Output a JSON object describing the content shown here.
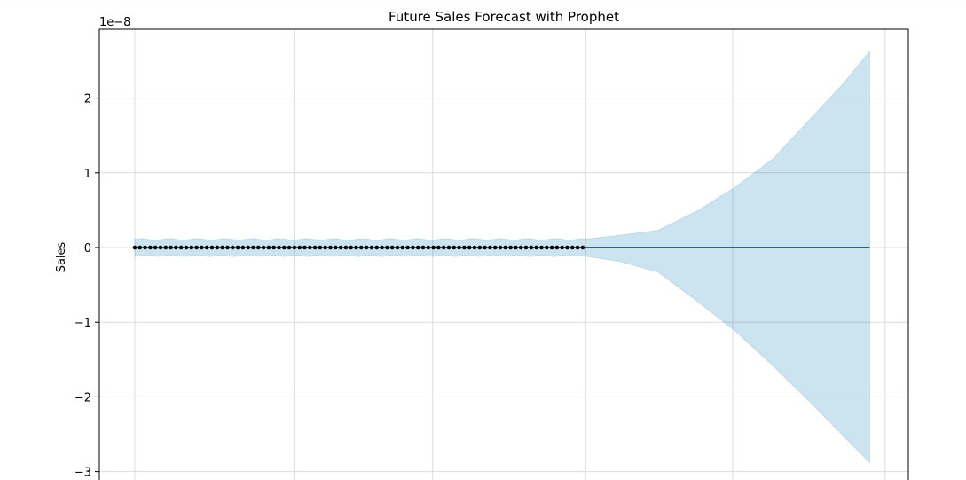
{
  "chart_data": {
    "type": "line",
    "title": "Future Sales Forecast with Prophet",
    "xlabel": "",
    "ylabel": "Sales",
    "y_offset_label": "1e−8",
    "ylim": [
      -3.0,
      2.9
    ],
    "y_ticks": [
      2,
      1,
      0,
      -1,
      -2,
      -3
    ],
    "y_tick_labels": [
      "2",
      "1",
      "0",
      "−1",
      "−2",
      "−3"
    ],
    "x_range": [
      0,
      1
    ],
    "x_grid": [
      0.0,
      0.207,
      0.387,
      0.586,
      0.777,
      0.975
    ],
    "grid": true,
    "history_end": 0.582,
    "forecast_end": 0.955,
    "actual_points": 88,
    "series": [
      {
        "values_note": "yhat",
        "value": 0
      }
    ],
    "band": {
      "history_half_width": 0.11,
      "upper": [
        [
          0.582,
          0.11
        ],
        [
          0.63,
          0.14
        ],
        [
          0.68,
          0.26
        ],
        [
          0.73,
          0.47
        ],
        [
          0.78,
          0.8
        ],
        [
          0.83,
          1.22
        ],
        [
          0.88,
          1.72
        ],
        [
          0.92,
          2.2
        ],
        [
          0.955,
          2.64
        ]
      ],
      "lower": [
        [
          0.582,
          -0.11
        ],
        [
          0.63,
          -0.17
        ],
        [
          0.68,
          -0.36
        ],
        [
          0.73,
          -0.7
        ],
        [
          0.78,
          -1.1
        ],
        [
          0.83,
          -1.62
        ],
        [
          0.88,
          -2.08
        ],
        [
          0.92,
          -2.5
        ],
        [
          0.955,
          -2.88
        ]
      ]
    },
    "colors": {
      "line": "#0072B2",
      "band": "#0072B2",
      "points": "#000000"
    }
  }
}
